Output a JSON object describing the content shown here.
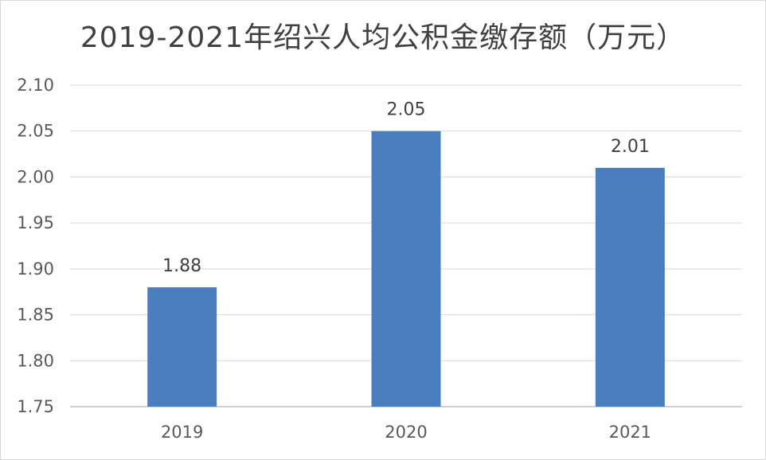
{
  "chart_data": {
    "type": "bar",
    "title": "2019-2021年绍兴人均公积金缴存额（万元）",
    "xlabel": "",
    "ylabel": "",
    "categories": [
      "2019",
      "2020",
      "2021"
    ],
    "values": [
      1.88,
      2.05,
      2.01
    ],
    "data_labels": [
      "1.88",
      "2.05",
      "2.01"
    ],
    "ylim": [
      1.75,
      2.1
    ],
    "yticks": [
      1.75,
      1.8,
      1.85,
      1.9,
      1.95,
      2.0,
      2.05,
      2.1
    ],
    "ytick_labels": [
      "1.75",
      "1.80",
      "1.85",
      "1.90",
      "1.95",
      "2.00",
      "2.05",
      "2.10"
    ],
    "grid": true,
    "legend": "none",
    "colors": {
      "bar": "#4a7ebf",
      "grid": "#d9d9d9",
      "axis": "#bfbfbf"
    }
  }
}
